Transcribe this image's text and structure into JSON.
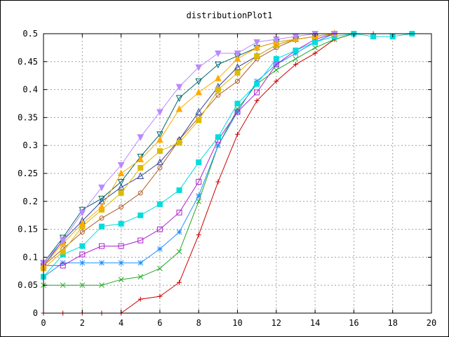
{
  "chart_data": {
    "type": "line",
    "title": "distributionPlot1",
    "xlabel": "",
    "ylabel": "",
    "xlim": [
      0,
      20
    ],
    "ylim": [
      0,
      0.5
    ],
    "xticks": [
      "0",
      "2",
      "4",
      "6",
      "8",
      "10",
      "12",
      "14",
      "16",
      "18",
      "20"
    ],
    "yticks": [
      "0",
      "0.05",
      "0.1",
      "0.15",
      "0.2",
      "0.25",
      "0.3",
      "0.35",
      "0.4",
      "0.45",
      "0.5"
    ],
    "grid": true,
    "legend": "none",
    "series": [
      {
        "color": "#cc0000",
        "marker": "plus",
        "x": [
          0,
          1,
          2,
          3,
          4,
          5,
          6,
          7,
          8,
          9,
          10,
          11,
          12,
          13,
          14,
          15,
          16,
          17
        ],
        "y": [
          0,
          0,
          0,
          0,
          0,
          0.025,
          0.03,
          0.055,
          0.14,
          0.235,
          0.32,
          0.38,
          0.415,
          0.445,
          0.465,
          0.49,
          0.5,
          0.5
        ]
      },
      {
        "color": "#22aa22",
        "marker": "x",
        "x": [
          0,
          1,
          2,
          3,
          4,
          5,
          6,
          7,
          8,
          9,
          10,
          11,
          12,
          13,
          14,
          15,
          16
        ],
        "y": [
          0.05,
          0.05,
          0.05,
          0.05,
          0.06,
          0.065,
          0.08,
          0.11,
          0.2,
          0.3,
          0.365,
          0.41,
          0.435,
          0.455,
          0.475,
          0.49,
          0.5
        ]
      },
      {
        "color": "#1e90ff",
        "marker": "star",
        "x": [
          0,
          1,
          2,
          3,
          4,
          5,
          6,
          7,
          8,
          9,
          10,
          11,
          12,
          13,
          14,
          15
        ],
        "y": [
          0.065,
          0.09,
          0.09,
          0.09,
          0.09,
          0.09,
          0.115,
          0.145,
          0.21,
          0.3,
          0.36,
          0.415,
          0.445,
          0.465,
          0.485,
          0.5
        ]
      },
      {
        "color": "#aa22cc",
        "marker": "square-open",
        "x": [
          0,
          1,
          2,
          3,
          4,
          5,
          6,
          7,
          8,
          9,
          10,
          11,
          12,
          13,
          14,
          15
        ],
        "y": [
          0.085,
          0.085,
          0.105,
          0.12,
          0.12,
          0.13,
          0.15,
          0.18,
          0.235,
          0.31,
          0.36,
          0.395,
          0.445,
          0.47,
          0.49,
          0.5
        ]
      },
      {
        "color": "#00dddd",
        "marker": "square-filled",
        "x": [
          0,
          1,
          2,
          3,
          4,
          5,
          6,
          7,
          8,
          9,
          10,
          11,
          12,
          13,
          14,
          15,
          16,
          17,
          18,
          19
        ],
        "y": [
          0.065,
          0.105,
          0.12,
          0.155,
          0.16,
          0.175,
          0.195,
          0.22,
          0.27,
          0.315,
          0.375,
          0.41,
          0.455,
          0.47,
          0.485,
          0.495,
          0.5,
          0.495,
          0.495,
          0.5
        ]
      },
      {
        "color": "#b05a28",
        "marker": "circle-open",
        "x": [
          0,
          1,
          2,
          3,
          4,
          5,
          6,
          7,
          8,
          9,
          10,
          11,
          12,
          13,
          14,
          15
        ],
        "y": [
          0.085,
          0.115,
          0.145,
          0.17,
          0.19,
          0.215,
          0.26,
          0.31,
          0.35,
          0.39,
          0.415,
          0.455,
          0.475,
          0.49,
          0.495,
          0.5
        ]
      },
      {
        "color": "#334499",
        "marker": "triangle-up-open",
        "x": [
          0,
          1,
          2,
          3,
          4,
          5,
          6,
          7,
          8,
          9,
          10,
          11,
          12,
          13,
          14,
          15
        ],
        "y": [
          0.085,
          0.13,
          0.165,
          0.2,
          0.225,
          0.245,
          0.27,
          0.31,
          0.36,
          0.405,
          0.44,
          0.46,
          0.48,
          0.49,
          0.495,
          0.5
        ]
      },
      {
        "color": "#ddbb00",
        "marker": "square-filled",
        "x": [
          0,
          1,
          2,
          3,
          4,
          5,
          6,
          7,
          8,
          9,
          10,
          11,
          12,
          13,
          14,
          15
        ],
        "y": [
          0.08,
          0.11,
          0.155,
          0.185,
          0.215,
          0.26,
          0.29,
          0.305,
          0.345,
          0.4,
          0.43,
          0.46,
          0.48,
          0.49,
          0.495,
          0.5
        ]
      },
      {
        "color": "#006666",
        "marker": "triangle-down-open",
        "x": [
          0,
          1,
          2,
          3,
          4,
          5,
          6,
          7,
          8,
          9,
          10,
          11,
          12,
          13,
          14,
          15
        ],
        "y": [
          0.09,
          0.135,
          0.185,
          0.205,
          0.235,
          0.28,
          0.32,
          0.385,
          0.415,
          0.445,
          0.46,
          0.475,
          0.485,
          0.49,
          0.495,
          0.5
        ]
      },
      {
        "color": "#ffaa00",
        "marker": "triangle-up-filled",
        "x": [
          0,
          1,
          2,
          3,
          4,
          5,
          6,
          7,
          8,
          9,
          10,
          11,
          12,
          13,
          14,
          15
        ],
        "y": [
          0.085,
          0.125,
          0.16,
          0.19,
          0.25,
          0.275,
          0.31,
          0.365,
          0.395,
          0.42,
          0.455,
          0.475,
          0.485,
          0.49,
          0.495,
          0.5
        ]
      },
      {
        "color": "#bb88ff",
        "marker": "triangle-down-filled",
        "x": [
          0,
          1,
          2,
          3,
          4,
          5,
          6,
          7,
          8,
          9,
          10,
          11,
          12,
          13,
          14,
          15
        ],
        "y": [
          0.09,
          0.13,
          0.18,
          0.225,
          0.265,
          0.315,
          0.36,
          0.405,
          0.44,
          0.465,
          0.465,
          0.485,
          0.49,
          0.495,
          0.5,
          0.5
        ]
      }
    ]
  }
}
